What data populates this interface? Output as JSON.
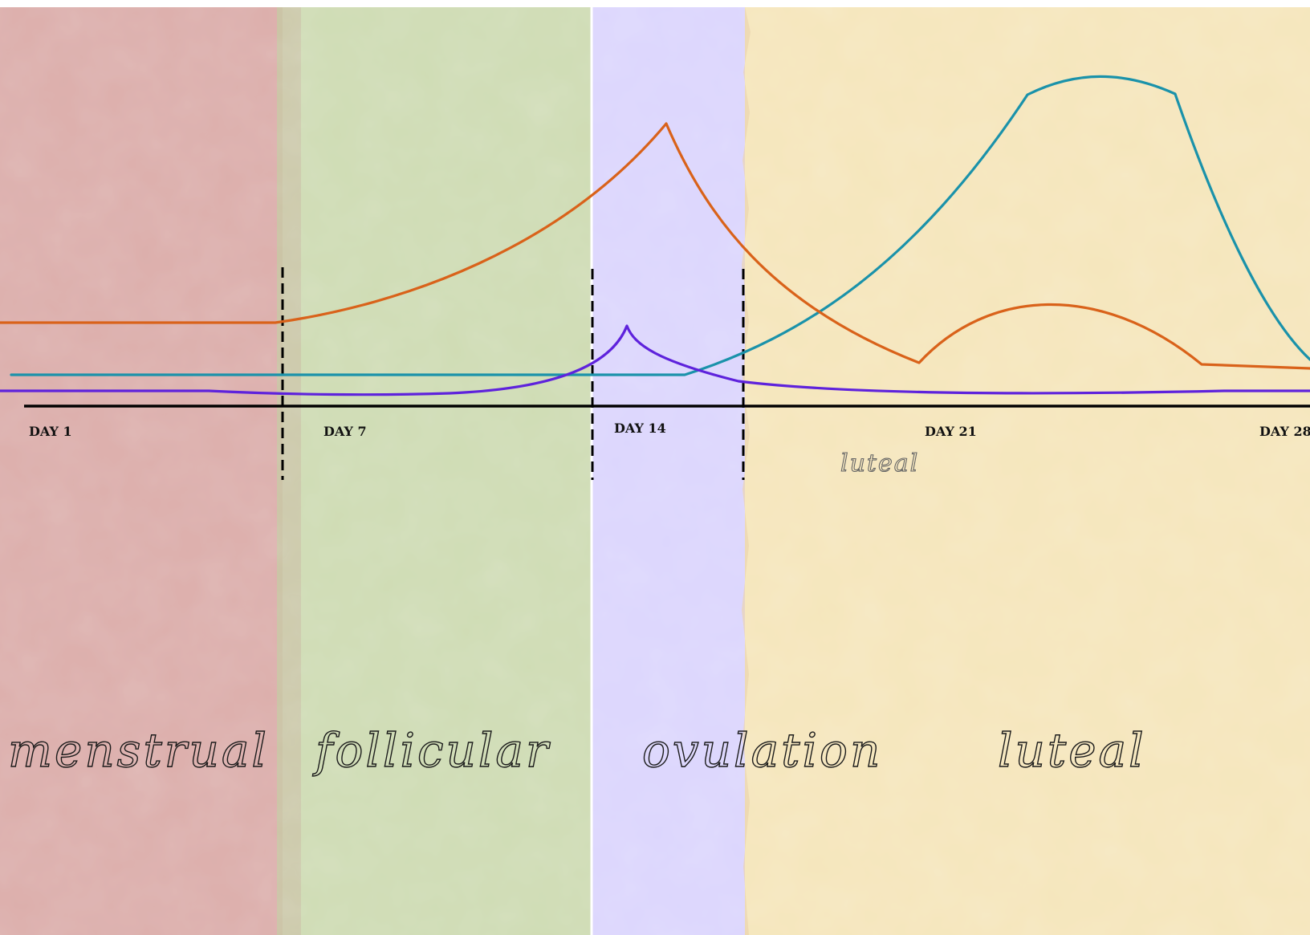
{
  "colors": {
    "menstrual_band": "#dcaeab",
    "follicular_band": "#cfdcb4",
    "ovulation_band": "#dcd6fd",
    "luteal_band": "#f5e6bc",
    "orange_curve": "#d9621a",
    "teal_curve": "#1a92aa",
    "purple_curve": "#5e22dc",
    "axis": "#000000"
  },
  "day_labels": [
    "DAY 1",
    "DAY 7",
    "DAY 14",
    "DAY 21",
    "DAY 28"
  ],
  "phase_labels": {
    "menstrual": "menstrual",
    "follicular": "follicular",
    "ovulation": "ovulation",
    "luteal": "luteal"
  },
  "small_label": "luteal"
}
